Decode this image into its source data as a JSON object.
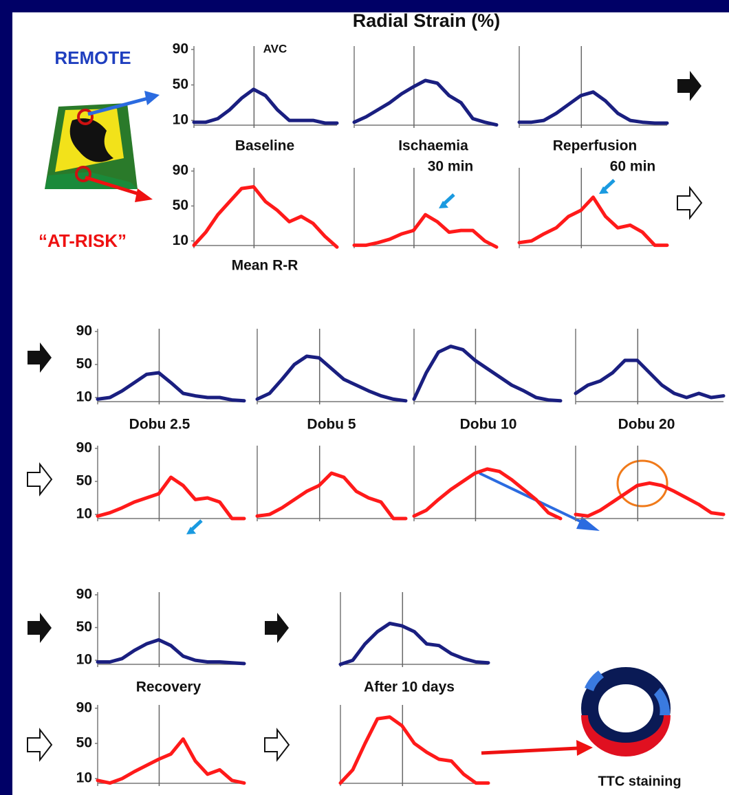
{
  "title": "Radial Strain (%)",
  "labels": {
    "remote": "REMOTE",
    "at_risk": "“AT-RISK”",
    "avc": "AVC",
    "baseline": "Baseline",
    "ischaemia": "Ischaemia",
    "ischaemia_time": "30 min",
    "reperfusion": "Reperfusion",
    "reperfusion_time": "60 min",
    "mean_rr": "Mean R-R",
    "dobu_2_5": "Dobu 2.5",
    "dobu_5": "Dobu 5",
    "dobu_10": "Dobu 10",
    "dobu_20": "Dobu 20",
    "recovery": "Recovery",
    "after_10_days": "After 10 days",
    "ttc": "TTC staining"
  },
  "chart_data": [
    {
      "type": "line",
      "color": "#1a1f80",
      "ylim": [
        0,
        100
      ],
      "yticks": [
        10,
        50,
        90
      ],
      "values": [
        8,
        8,
        12,
        22,
        35,
        45,
        38,
        22,
        10,
        10,
        10,
        7,
        7
      ]
    },
    {
      "type": "line",
      "color": "#1a1f80",
      "ylim": [
        0,
        100
      ],
      "values": [
        8,
        14,
        22,
        30,
        40,
        48,
        55,
        52,
        38,
        30,
        12,
        8,
        5
      ]
    },
    {
      "type": "line",
      "color": "#1a1f80",
      "ylim": [
        0,
        100
      ],
      "values": [
        8,
        8,
        10,
        18,
        28,
        38,
        42,
        32,
        18,
        10,
        8,
        7,
        7
      ]
    },
    {
      "type": "line",
      "color": "#ff1a1a",
      "ylim": [
        0,
        100
      ],
      "yticks": [
        10,
        50,
        90
      ],
      "values": [
        5,
        20,
        40,
        55,
        70,
        72,
        55,
        45,
        32,
        38,
        30,
        15,
        3
      ]
    },
    {
      "type": "line",
      "color": "#ff1a1a",
      "ylim": [
        0,
        100
      ],
      "values": [
        5,
        5,
        8,
        12,
        18,
        22,
        40,
        32,
        20,
        22,
        22,
        10,
        3
      ]
    },
    {
      "type": "line",
      "color": "#ff1a1a",
      "ylim": [
        0,
        100
      ],
      "values": [
        8,
        10,
        18,
        25,
        38,
        45,
        60,
        38,
        25,
        28,
        20,
        5,
        5
      ]
    },
    {
      "type": "line",
      "color": "#1a1f80",
      "ylim": [
        0,
        100
      ],
      "yticks": [
        10,
        50,
        90
      ],
      "values": [
        8,
        10,
        18,
        28,
        38,
        40,
        28,
        15,
        12,
        10,
        10,
        7,
        6
      ]
    },
    {
      "type": "line",
      "color": "#1a1f80",
      "ylim": [
        0,
        100
      ],
      "values": [
        8,
        15,
        32,
        50,
        60,
        58,
        45,
        32,
        25,
        18,
        12,
        8,
        6
      ]
    },
    {
      "type": "line",
      "color": "#1a1f80",
      "ylim": [
        0,
        100
      ],
      "values": [
        8,
        40,
        65,
        72,
        68,
        55,
        45,
        35,
        25,
        18,
        10,
        7,
        6
      ]
    },
    {
      "type": "line",
      "color": "#1a1f80",
      "ylim": [
        0,
        100
      ],
      "values": [
        15,
        25,
        30,
        40,
        55,
        55,
        40,
        25,
        15,
        10,
        15,
        10,
        12
      ]
    },
    {
      "type": "line",
      "color": "#ff1a1a",
      "ylim": [
        0,
        100
      ],
      "yticks": [
        10,
        50,
        90
      ],
      "values": [
        8,
        12,
        18,
        25,
        30,
        35,
        55,
        45,
        28,
        30,
        25,
        5,
        5
      ]
    },
    {
      "type": "line",
      "color": "#ff1a1a",
      "ylim": [
        0,
        100
      ],
      "values": [
        8,
        10,
        18,
        28,
        38,
        45,
        60,
        55,
        38,
        30,
        25,
        5,
        5
      ]
    },
    {
      "type": "line",
      "color": "#ff1a1a",
      "ylim": [
        0,
        100
      ],
      "values": [
        8,
        15,
        28,
        40,
        50,
        60,
        65,
        62,
        52,
        40,
        28,
        12,
        5
      ]
    },
    {
      "type": "line",
      "color": "#ff1a1a",
      "ylim": [
        0,
        100
      ],
      "values": [
        10,
        8,
        15,
        25,
        35,
        45,
        48,
        45,
        38,
        30,
        22,
        12,
        10
      ]
    },
    {
      "type": "line",
      "color": "#1a1f80",
      "ylim": [
        0,
        100
      ],
      "yticks": [
        10,
        50,
        90
      ],
      "values": [
        8,
        8,
        12,
        22,
        30,
        35,
        28,
        15,
        10,
        8,
        8,
        7,
        6
      ]
    },
    {
      "type": "line",
      "color": "#1a1f80",
      "ylim": [
        0,
        100
      ],
      "values": [
        5,
        10,
        30,
        45,
        55,
        52,
        45,
        30,
        28,
        18,
        12,
        8,
        7
      ]
    },
    {
      "type": "line",
      "color": "#ff1a1a",
      "ylim": [
        0,
        100
      ],
      "yticks": [
        10,
        50,
        90
      ],
      "values": [
        8,
        5,
        10,
        18,
        25,
        32,
        38,
        55,
        30,
        15,
        20,
        8,
        5
      ]
    },
    {
      "type": "line",
      "color": "#ff1a1a",
      "ylim": [
        0,
        100
      ],
      "values": [
        5,
        20,
        50,
        78,
        80,
        70,
        50,
        40,
        32,
        30,
        15,
        5,
        5
      ]
    }
  ]
}
